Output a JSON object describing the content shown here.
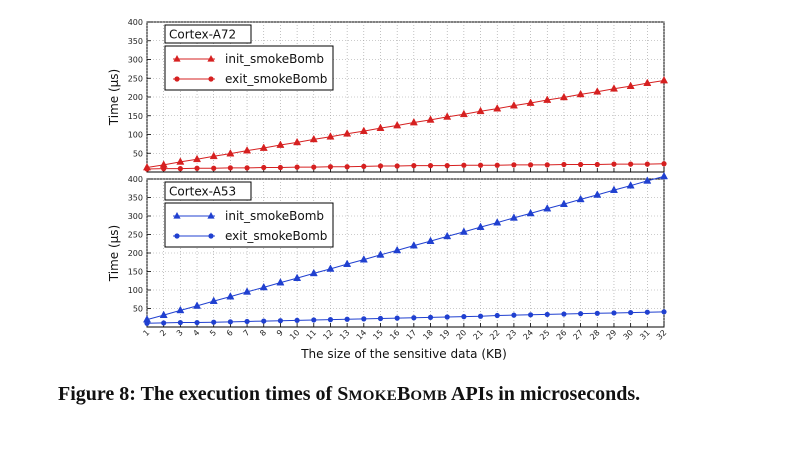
{
  "caption": {
    "prefix": "Figure 8: The execution times of ",
    "name_cap1": "S",
    "name_small1": "MOKE",
    "name_cap2": "B",
    "name_small2": "OMB",
    "suffix": " APIs in microseconds."
  },
  "colors": {
    "red": "#d62020",
    "blue": "#2040d0"
  },
  "chart_data": [
    {
      "type": "line",
      "title": "Cortex-A72",
      "xlabel": "The size of the sensitive data (KB)",
      "ylabel": "Time (μs)",
      "x": [
        1,
        2,
        3,
        4,
        5,
        6,
        7,
        8,
        9,
        10,
        11,
        12,
        13,
        14,
        15,
        16,
        17,
        18,
        19,
        20,
        21,
        22,
        23,
        24,
        25,
        26,
        27,
        28,
        29,
        30,
        31,
        32
      ],
      "xlim": [
        1,
        32
      ],
      "ylim": [
        0,
        400
      ],
      "yticks": [
        50,
        100,
        150,
        200,
        250,
        300,
        350,
        400
      ],
      "grid": true,
      "legend": "top-left",
      "series": [
        {
          "name": "init_smokeBomb",
          "marker": "triangle",
          "color": "#d62020",
          "values": [
            12,
            19,
            27,
            34,
            42,
            49,
            57,
            64,
            72,
            79,
            87,
            94,
            102,
            109,
            117,
            124,
            132,
            139,
            147,
            154,
            162,
            169,
            177,
            184,
            192,
            199,
            207,
            214,
            222,
            229,
            237,
            244
          ]
        },
        {
          "name": "exit_smokeBomb",
          "marker": "circle",
          "color": "#d62020",
          "values": [
            8,
            9,
            9,
            10,
            10,
            11,
            11,
            12,
            12,
            13,
            13,
            14,
            14,
            15,
            16,
            16,
            17,
            17,
            17,
            18,
            18,
            18,
            19,
            19,
            19,
            20,
            20,
            20,
            21,
            21,
            21,
            22
          ]
        }
      ]
    },
    {
      "type": "line",
      "title": "Cortex-A53",
      "xlabel": "The size of the sensitive data (KB)",
      "ylabel": "Time (μs)",
      "x": [
        1,
        2,
        3,
        4,
        5,
        6,
        7,
        8,
        9,
        10,
        11,
        12,
        13,
        14,
        15,
        16,
        17,
        18,
        19,
        20,
        21,
        22,
        23,
        24,
        25,
        26,
        27,
        28,
        29,
        30,
        31,
        32
      ],
      "xlim": [
        1,
        32
      ],
      "ylim": [
        0,
        400
      ],
      "yticks": [
        50,
        100,
        150,
        200,
        250,
        300,
        350,
        400
      ],
      "xticks": [
        1,
        2,
        3,
        4,
        5,
        6,
        7,
        8,
        9,
        10,
        11,
        12,
        13,
        14,
        15,
        16,
        17,
        18,
        19,
        20,
        21,
        22,
        23,
        24,
        25,
        26,
        27,
        28,
        29,
        30,
        31,
        32
      ],
      "grid": true,
      "legend": "top-left",
      "series": [
        {
          "name": "init_smokeBomb",
          "marker": "triangle",
          "color": "#2040d0",
          "values": [
            20,
            32,
            45,
            57,
            70,
            82,
            95,
            107,
            120,
            132,
            145,
            157,
            170,
            182,
            195,
            207,
            220,
            232,
            245,
            257,
            270,
            282,
            295,
            307,
            320,
            332,
            345,
            357,
            370,
            382,
            395,
            407
          ]
        },
        {
          "name": "exit_smokeBomb",
          "marker": "circle",
          "color": "#2040d0",
          "values": [
            10,
            11,
            12,
            12,
            13,
            14,
            15,
            16,
            17,
            18,
            19,
            20,
            21,
            22,
            23,
            24,
            25,
            26,
            27,
            28,
            29,
            31,
            32,
            33,
            34,
            35,
            36,
            37,
            38,
            39,
            40,
            41
          ]
        }
      ]
    }
  ]
}
